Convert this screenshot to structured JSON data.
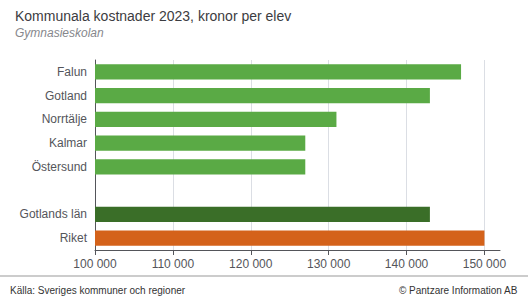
{
  "chart_data": {
    "type": "bar",
    "orientation": "horizontal",
    "title": "Kommunala kostnader 2023, kronor per elev",
    "subtitle": "Gymnasieskolan",
    "categories": [
      "Falun",
      "Gotland",
      "Norrtälje",
      "Kalmar",
      "Östersund",
      null,
      "Gotlands län",
      "Riket"
    ],
    "values": [
      147000,
      143000,
      131000,
      127000,
      127000,
      null,
      143000,
      150000
    ],
    "colors": [
      "#5aaa45",
      "#5aaa45",
      "#5aaa45",
      "#5aaa45",
      "#5aaa45",
      null,
      "#3a6e28",
      "#d4621a"
    ],
    "xlim": [
      100000,
      152000
    ],
    "xticks": [
      {
        "value": 100000,
        "label": "100 000"
      },
      {
        "value": 110000,
        "label": "110 000"
      },
      {
        "value": 120000,
        "label": "120 000"
      },
      {
        "value": 130000,
        "label": "130 000"
      },
      {
        "value": 140000,
        "label": "140 000"
      },
      {
        "value": 150000,
        "label": "150 000"
      }
    ],
    "grid": true,
    "annotations": [
      "Källa: Sveriges kommuner och regioner",
      "© Pantzare Information AB"
    ]
  }
}
